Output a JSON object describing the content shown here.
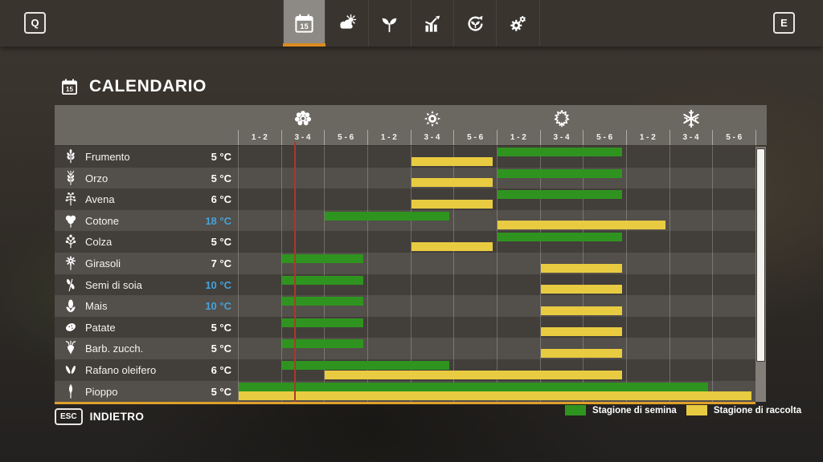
{
  "topbar": {
    "key_left": "Q",
    "key_right": "E",
    "tabs": [
      {
        "id": "calendar",
        "icon": "calendar-icon",
        "selected": true
      },
      {
        "id": "weather",
        "icon": "weather-icon",
        "selected": false
      },
      {
        "id": "crops",
        "icon": "seedling-icon",
        "selected": false
      },
      {
        "id": "statistics",
        "icon": "stats-icon",
        "selected": false
      },
      {
        "id": "rotation",
        "icon": "rotation-icon",
        "selected": false
      },
      {
        "id": "settings",
        "icon": "gears-icon",
        "selected": false
      }
    ]
  },
  "page": {
    "title": "CALENDARIO",
    "title_icon": "calendar-icon"
  },
  "calendar": {
    "seasons": [
      {
        "name": "primavera",
        "icon": "flower-icon"
      },
      {
        "name": "estate",
        "icon": "sun-icon"
      },
      {
        "name": "autunno",
        "icon": "maple-leaf-icon"
      },
      {
        "name": "inverno",
        "icon": "snowflake-icon"
      }
    ],
    "period_labels": [
      "1 - 2",
      "3 - 4",
      "5 - 6"
    ],
    "current_date_line_period": 2.3,
    "rows": [
      {
        "name": "Frumento",
        "icon": "wheat-icon",
        "temp": "5 °C",
        "temp_highlighted": false,
        "sow": [
          7,
          9
        ],
        "harvest": [
          5,
          6
        ]
      },
      {
        "name": "Orzo",
        "icon": "barley-icon",
        "temp": "5 °C",
        "temp_highlighted": false,
        "sow": [
          7,
          9
        ],
        "harvest": [
          5,
          6
        ]
      },
      {
        "name": "Avena",
        "icon": "oat-icon",
        "temp": "6 °C",
        "temp_highlighted": false,
        "sow": [
          7,
          9
        ],
        "harvest": [
          5,
          6
        ]
      },
      {
        "name": "Cotone",
        "icon": "cotton-icon",
        "temp": "18 °C",
        "temp_highlighted": true,
        "sow": [
          3,
          5
        ],
        "harvest": [
          7,
          10
        ]
      },
      {
        "name": "Colza",
        "icon": "canola-icon",
        "temp": "5 °C",
        "temp_highlighted": false,
        "sow": [
          7,
          9
        ],
        "harvest": [
          5,
          6
        ]
      },
      {
        "name": "Girasoli",
        "icon": "sunflower-icon",
        "temp": "7 °C",
        "temp_highlighted": false,
        "sow": [
          2,
          3
        ],
        "harvest": [
          8,
          9
        ]
      },
      {
        "name": "Semi di soia",
        "icon": "soybean-icon",
        "temp": "10 °C",
        "temp_highlighted": true,
        "sow": [
          2,
          3
        ],
        "harvest": [
          8,
          9
        ]
      },
      {
        "name": "Mais",
        "icon": "corn-icon",
        "temp": "10 °C",
        "temp_highlighted": true,
        "sow": [
          2,
          3
        ],
        "harvest": [
          8,
          9
        ]
      },
      {
        "name": "Patate",
        "icon": "potato-icon",
        "temp": "5 °C",
        "temp_highlighted": false,
        "sow": [
          2,
          3
        ],
        "harvest": [
          8,
          9
        ]
      },
      {
        "name": "Barb. zucch.",
        "icon": "sugar-beet-icon",
        "temp": "5 °C",
        "temp_highlighted": false,
        "sow": [
          2,
          3
        ],
        "harvest": [
          8,
          9
        ]
      },
      {
        "name": "Rafano oleifero",
        "icon": "oilseed-radish-icon",
        "temp": "6 °C",
        "temp_highlighted": false,
        "sow": [
          2,
          5
        ],
        "harvest": [
          3,
          9
        ]
      },
      {
        "name": "Pioppo",
        "icon": "poplar-icon",
        "temp": "5 °C",
        "temp_highlighted": false,
        "sow": [
          1,
          11
        ],
        "harvest": [
          1,
          12
        ]
      }
    ]
  },
  "legend": [
    {
      "label": "Stagione di semina",
      "color_key": "sow_green"
    },
    {
      "label": "Stagione di raccolta",
      "color_key": "harvest_yellow"
    }
  ],
  "footer": {
    "key": "ESC",
    "label": "INDIETRO"
  },
  "colors": {
    "sow_green": "#2f941f",
    "harvest_yellow": "#e9cb41",
    "selected_tab_underline": "#d98b20",
    "table_underline_orange": "#dfa02a",
    "current_date_line": "#a83a2c",
    "temp_highlight_blue": "#45a3dc"
  }
}
